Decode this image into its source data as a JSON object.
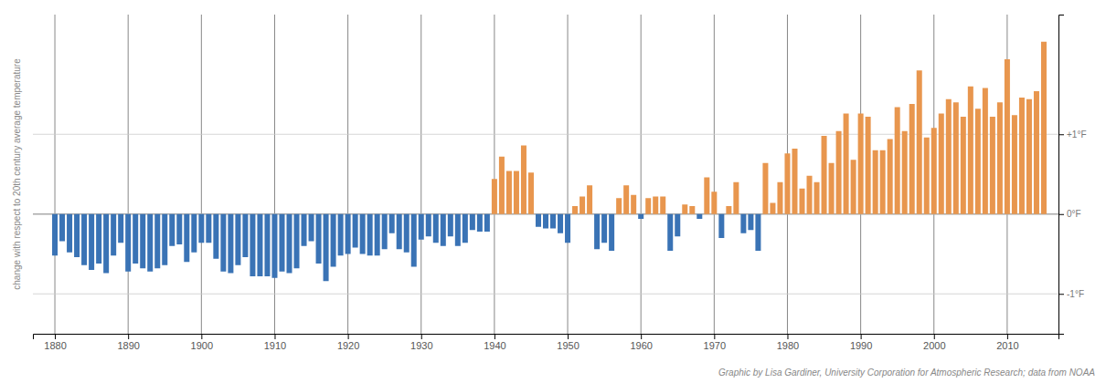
{
  "chart_data": {
    "type": "bar",
    "x": [
      1880,
      1881,
      1882,
      1883,
      1884,
      1885,
      1886,
      1887,
      1888,
      1889,
      1890,
      1891,
      1892,
      1893,
      1894,
      1895,
      1896,
      1897,
      1898,
      1899,
      1900,
      1901,
      1902,
      1903,
      1904,
      1905,
      1906,
      1907,
      1908,
      1909,
      1910,
      1911,
      1912,
      1913,
      1914,
      1915,
      1916,
      1917,
      1918,
      1919,
      1920,
      1921,
      1922,
      1923,
      1924,
      1925,
      1926,
      1927,
      1928,
      1929,
      1930,
      1931,
      1932,
      1933,
      1934,
      1935,
      1936,
      1937,
      1938,
      1939,
      1940,
      1941,
      1942,
      1943,
      1944,
      1945,
      1946,
      1947,
      1948,
      1949,
      1950,
      1951,
      1952,
      1953,
      1954,
      1955,
      1956,
      1957,
      1958,
      1959,
      1960,
      1961,
      1962,
      1963,
      1964,
      1965,
      1966,
      1967,
      1968,
      1969,
      1970,
      1971,
      1972,
      1973,
      1974,
      1975,
      1976,
      1977,
      1978,
      1979,
      1980,
      1981,
      1982,
      1983,
      1984,
      1985,
      1986,
      1987,
      1988,
      1989,
      1990,
      1991,
      1992,
      1993,
      1994,
      1995,
      1996,
      1997,
      1998,
      1999,
      2000,
      2001,
      2002,
      2003,
      2004,
      2005,
      2006,
      2007,
      2008,
      2009,
      2010,
      2011,
      2012,
      2013,
      2014,
      2015
    ],
    "values": [
      -0.52,
      -0.34,
      -0.48,
      -0.54,
      -0.64,
      -0.7,
      -0.62,
      -0.74,
      -0.52,
      -0.36,
      -0.72,
      -0.62,
      -0.68,
      -0.72,
      -0.68,
      -0.64,
      -0.4,
      -0.38,
      -0.6,
      -0.48,
      -0.36,
      -0.36,
      -0.56,
      -0.72,
      -0.74,
      -0.64,
      -0.54,
      -0.78,
      -0.78,
      -0.78,
      -0.8,
      -0.72,
      -0.74,
      -0.68,
      -0.4,
      -0.34,
      -0.62,
      -0.84,
      -0.66,
      -0.52,
      -0.5,
      -0.42,
      -0.5,
      -0.52,
      -0.52,
      -0.44,
      -0.24,
      -0.44,
      -0.48,
      -0.66,
      -0.32,
      -0.28,
      -0.36,
      -0.4,
      -0.28,
      -0.4,
      -0.36,
      -0.2,
      -0.22,
      -0.22,
      0.44,
      0.72,
      0.54,
      0.54,
      0.86,
      0.52,
      -0.16,
      -0.18,
      -0.18,
      -0.24,
      -0.36,
      0.1,
      0.22,
      0.36,
      -0.44,
      -0.36,
      -0.46,
      0.2,
      0.36,
      0.24,
      -0.06,
      0.2,
      0.22,
      0.22,
      -0.46,
      -0.28,
      0.12,
      0.1,
      -0.06,
      0.46,
      0.28,
      -0.3,
      0.1,
      0.4,
      -0.24,
      -0.2,
      -0.46,
      0.64,
      0.14,
      0.4,
      0.76,
      0.82,
      0.32,
      0.48,
      0.4,
      0.98,
      0.64,
      1.04,
      1.26,
      0.68,
      1.26,
      1.22,
      0.8,
      0.8,
      0.94,
      1.34,
      1.04,
      1.38,
      1.8,
      0.96,
      1.08,
      1.26,
      1.44,
      1.4,
      1.22,
      1.6,
      1.32,
      1.58,
      1.22,
      1.4,
      1.94,
      1.24,
      1.46,
      1.44,
      1.54,
      2.16
    ],
    "colors": [
      "#3A73B5",
      "#3A73B5",
      "#3A73B5",
      "#3A73B5",
      "#3A73B5",
      "#3A73B5",
      "#3A73B5",
      "#3A73B5",
      "#3A73B5",
      "#3A73B5",
      "#3A73B5",
      "#3A73B5",
      "#3A73B5",
      "#3A73B5",
      "#3A73B5",
      "#3A73B5",
      "#3A73B5",
      "#3A73B5",
      "#3A73B5",
      "#3A73B5",
      "#3A73B5",
      "#3A73B5",
      "#3A73B5",
      "#3A73B5",
      "#3A73B5",
      "#3A73B5",
      "#3A73B5",
      "#3A73B5",
      "#3A73B5",
      "#3A73B5",
      "#3A73B5",
      "#3A73B5",
      "#3A73B5",
      "#3A73B5",
      "#3A73B5",
      "#3A73B5",
      "#3A73B5",
      "#3A73B5",
      "#3A73B5",
      "#3A73B5",
      "#3A73B5",
      "#3A73B5",
      "#3A73B5",
      "#3A73B5",
      "#3A73B5",
      "#3A73B5",
      "#3A73B5",
      "#3A73B5",
      "#3A73B5",
      "#3A73B5",
      "#3A73B5",
      "#3A73B5",
      "#3A73B5",
      "#3A73B5",
      "#3A73B5",
      "#3A73B5",
      "#3A73B5",
      "#3A73B5",
      "#3A73B5",
      "#3A73B5",
      "#E8964E",
      "#E8964E",
      "#E8964E",
      "#E8964E",
      "#E8964E",
      "#E8964E",
      "#3A73B5",
      "#3A73B5",
      "#3A73B5",
      "#3A73B5",
      "#3A73B5",
      "#E8964E",
      "#E8964E",
      "#E8964E",
      "#3A73B5",
      "#3A73B5",
      "#3A73B5",
      "#E8964E",
      "#E8964E",
      "#E8964E",
      "#3A73B5",
      "#E8964E",
      "#E8964E",
      "#E8964E",
      "#3A73B5",
      "#3A73B5",
      "#E8964E",
      "#E8964E",
      "#3A73B5",
      "#E8964E",
      "#E8964E",
      "#3A73B5",
      "#E8964E",
      "#E8964E",
      "#3A73B5",
      "#3A73B5",
      "#3A73B5",
      "#E8964E",
      "#E8964E",
      "#E8964E",
      "#E8964E",
      "#E8964E",
      "#E8964E",
      "#E8964E",
      "#E8964E",
      "#E8964E",
      "#E8964E",
      "#E8964E",
      "#E8964E",
      "#E8964E",
      "#E8964E",
      "#E8964E",
      "#E8964E",
      "#E8964E",
      "#E8964E",
      "#E8964E",
      "#E8964E",
      "#E8964E",
      "#E8964E",
      "#E8964E",
      "#E8964E",
      "#E8964E",
      "#E8964E",
      "#E8964E",
      "#E8964E",
      "#E8964E",
      "#E8964E",
      "#E8964E",
      "#E8964E",
      "#E8964E",
      "#E8964E",
      "#E8964E",
      "#E8964E",
      "#E8964E",
      "#E8964E",
      "#E8964E"
    ],
    "ylabel": "change with respect to 20th century average temperature",
    "xlim": [
      1877,
      2017
    ],
    "xticks": [
      1880,
      1890,
      1900,
      1910,
      1920,
      1930,
      1940,
      1950,
      1960,
      1970,
      1980,
      1990,
      2000,
      2010
    ],
    "ylim": [
      -1.5,
      2.5
    ],
    "yticks": [
      {
        "value": 1.0,
        "label": "+1°F"
      },
      {
        "value": 0.0,
        "label": "0°F"
      },
      {
        "value": -1.0,
        "label": "-1°F"
      }
    ],
    "grid": true,
    "annotations": [
      "Graphic by Lisa Gardiner, University Corporation for Atmospheric Research; data from NOAA"
    ]
  }
}
